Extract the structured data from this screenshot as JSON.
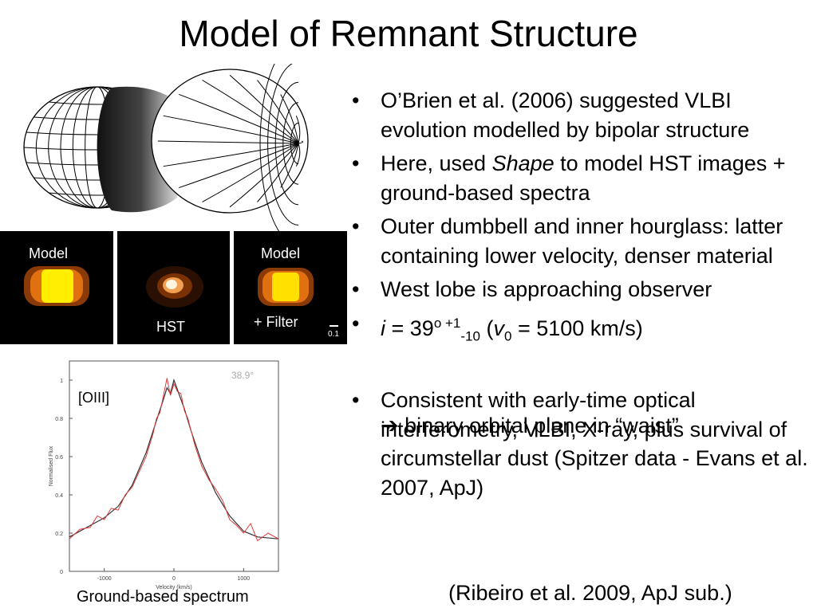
{
  "title": "Model of Remnant Structure",
  "panels": {
    "left_label": "Model",
    "middle_label": "HST",
    "right_label_top": "Model",
    "right_label_bottom": "+ Filter",
    "scale_label": "0.1"
  },
  "bullets": {
    "b1": "O’Brien et al. (2006) suggested VLBI evolution modelled by bipolar structure",
    "b2_pre": "Here, used ",
    "b2_em": "Shape",
    "b2_post": " to model HST images + ground-based spectra",
    "b3": "Outer dumbbell and inner hourglass: latter containing lower velocity, denser material",
    "b4": "West lobe is approaching observer",
    "b5_i": "i",
    "b5_eq": " = 39",
    "b5_deg": "o",
    "b5_plus": " +1",
    "b5_minus": "-10",
    "b5_open": " (",
    "b5_v": "v",
    "b5_vsub": "0",
    "b5_val": " = 5100 km/s)",
    "arrow": "➔",
    "b5_sub": " binary orbital plane in “waist”",
    "b6": "Consistent with early-time optical interferometry, VLBI, X-ray, plus survival of circumstellar dust (Spitzer data - Evans et al. 2007, ApJ)"
  },
  "citation": "(Ribeiro et al. 2009, ApJ sub.)",
  "spectrum": {
    "line_label": "[OIII]",
    "angle_label": "38.9°",
    "ylabel": "Normalised Flux",
    "xlabel": "Velocity (km/s)",
    "yticks": [
      "0",
      "0.2",
      "0.4",
      "0.6",
      "0.8",
      "1"
    ],
    "xticks": [
      "-1000",
      "0",
      "1000"
    ],
    "caption": "Ground-based spectrum"
  },
  "chart_data": {
    "type": "line",
    "title": "",
    "xlabel": "Velocity (km/s)",
    "ylabel": "Normalised Flux",
    "xlim": [
      -1500,
      1500
    ],
    "ylim": [
      0,
      1.1
    ],
    "annotations": [
      "[OIII]",
      "38.9°"
    ],
    "series": [
      {
        "color": "#333333",
        "x": [
          -1500,
          -1200,
          -1000,
          -800,
          -600,
          -400,
          -250,
          -150,
          -100,
          -50,
          0,
          50,
          100,
          150,
          250,
          400,
          600,
          800,
          1000,
          1200,
          1500
        ],
        "y": [
          0.18,
          0.24,
          0.28,
          0.34,
          0.45,
          0.62,
          0.79,
          0.9,
          0.96,
          0.93,
          1.0,
          0.95,
          0.9,
          0.85,
          0.73,
          0.57,
          0.41,
          0.29,
          0.21,
          0.18,
          0.17
        ]
      },
      {
        "color": "#e03a3a",
        "x": [
          -1500,
          -1350,
          -1200,
          -1100,
          -1000,
          -900,
          -800,
          -700,
          -600,
          -500,
          -400,
          -300,
          -250,
          -200,
          -150,
          -100,
          -50,
          0,
          50,
          100,
          150,
          200,
          300,
          400,
          500,
          600,
          700,
          800,
          900,
          1000,
          1100,
          1200,
          1350,
          1500
        ],
        "y": [
          0.17,
          0.22,
          0.23,
          0.29,
          0.27,
          0.33,
          0.32,
          0.4,
          0.44,
          0.52,
          0.6,
          0.72,
          0.8,
          0.83,
          0.92,
          1.01,
          0.92,
          0.98,
          0.94,
          0.93,
          0.84,
          0.8,
          0.66,
          0.55,
          0.48,
          0.43,
          0.37,
          0.27,
          0.24,
          0.2,
          0.25,
          0.16,
          0.2,
          0.17
        ]
      }
    ]
  }
}
